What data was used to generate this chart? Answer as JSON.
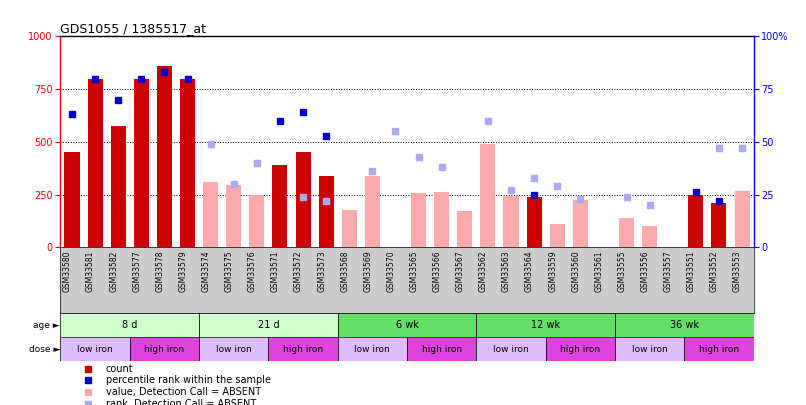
{
  "title": "GDS1055 / 1385517_at",
  "samples": [
    "GSM33580",
    "GSM33581",
    "GSM33582",
    "GSM33577",
    "GSM33578",
    "GSM33579",
    "GSM33574",
    "GSM33575",
    "GSM33576",
    "GSM33571",
    "GSM33572",
    "GSM33573",
    "GSM33568",
    "GSM33569",
    "GSM33570",
    "GSM33565",
    "GSM33566",
    "GSM33567",
    "GSM33562",
    "GSM33563",
    "GSM33564",
    "GSM33559",
    "GSM33560",
    "GSM33561",
    "GSM33555",
    "GSM33556",
    "GSM33557",
    "GSM33551",
    "GSM33552",
    "GSM33553"
  ],
  "count_values": [
    450,
    800,
    575,
    800,
    860,
    800,
    null,
    null,
    null,
    390,
    450,
    340,
    null,
    null,
    null,
    null,
    null,
    null,
    null,
    null,
    240,
    null,
    null,
    null,
    null,
    null,
    null,
    250,
    210,
    null
  ],
  "rank_values": [
    63,
    80,
    70,
    80,
    83,
    80,
    null,
    null,
    null,
    60,
    64,
    53,
    null,
    null,
    null,
    null,
    null,
    null,
    null,
    null,
    25,
    null,
    null,
    null,
    null,
    null,
    null,
    26,
    22,
    null
  ],
  "absent_count": [
    null,
    null,
    null,
    null,
    null,
    null,
    310,
    295,
    250,
    null,
    null,
    null,
    175,
    340,
    null,
    255,
    260,
    170,
    490,
    245,
    null,
    110,
    225,
    null,
    140,
    100,
    null,
    null,
    null,
    265
  ],
  "rank_absent_values": [
    null,
    null,
    null,
    null,
    null,
    null,
    49,
    30,
    40,
    null,
    24,
    22,
    null,
    36,
    55,
    43,
    38,
    null,
    60,
    27,
    33,
    29,
    23,
    null,
    24,
    20,
    null,
    null,
    47,
    47
  ],
  "age_groups": [
    {
      "label": "8 d",
      "start": 0,
      "end": 6,
      "color": "#ccffcc"
    },
    {
      "label": "21 d",
      "start": 6,
      "end": 12,
      "color": "#ccffcc"
    },
    {
      "label": "6 wk",
      "start": 12,
      "end": 18,
      "color": "#66dd66"
    },
    {
      "label": "12 wk",
      "start": 18,
      "end": 24,
      "color": "#66dd66"
    },
    {
      "label": "36 wk",
      "start": 24,
      "end": 30,
      "color": "#66dd66"
    }
  ],
  "dose_groups": [
    {
      "label": "low iron",
      "start": 0,
      "end": 3,
      "color": "#ddbbff"
    },
    {
      "label": "high iron",
      "start": 3,
      "end": 6,
      "color": "#dd44dd"
    },
    {
      "label": "low iron",
      "start": 6,
      "end": 9,
      "color": "#ddbbff"
    },
    {
      "label": "high iron",
      "start": 9,
      "end": 12,
      "color": "#dd44dd"
    },
    {
      "label": "low iron",
      "start": 12,
      "end": 15,
      "color": "#ddbbff"
    },
    {
      "label": "high iron",
      "start": 15,
      "end": 18,
      "color": "#dd44dd"
    },
    {
      "label": "low iron",
      "start": 18,
      "end": 21,
      "color": "#ddbbff"
    },
    {
      "label": "high iron",
      "start": 21,
      "end": 24,
      "color": "#dd44dd"
    },
    {
      "label": "low iron",
      "start": 24,
      "end": 27,
      "color": "#ddbbff"
    },
    {
      "label": "high iron",
      "start": 27,
      "end": 30,
      "color": "#dd44dd"
    }
  ],
  "ylim": [
    0,
    1000
  ],
  "yticks": [
    0,
    250,
    500,
    750,
    1000
  ],
  "right_ylim": [
    0,
    100
  ],
  "right_yticks": [
    0,
    25,
    50,
    75,
    100
  ],
  "right_yticklabels": [
    "0",
    "25",
    "50",
    "75",
    "100%"
  ],
  "count_color": "#cc0000",
  "rank_color": "#0000cc",
  "absent_count_color": "#ffaaaa",
  "absent_rank_color": "#aaaaee",
  "bg_color": "#ffffff",
  "xtick_bg": "#cccccc"
}
